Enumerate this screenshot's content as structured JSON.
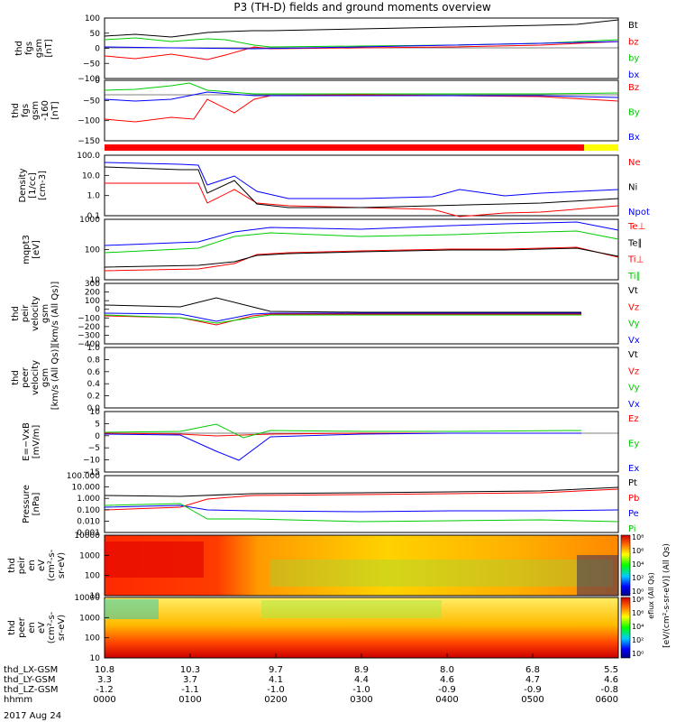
{
  "chart_data": {
    "type": "line",
    "title": "P3 (TH-D) fields and ground moments overview",
    "date_label": "2017 Aug 24",
    "x_axis": {
      "rows": [
        {
          "name": "thd_LX-GSM",
          "values": [
            "10.8",
            "10.3",
            "9.7",
            "8.9",
            "8.0",
            "6.8",
            "5.5"
          ]
        },
        {
          "name": "thd_LY-GSM",
          "values": [
            "3.3",
            "3.7",
            "4.1",
            "4.4",
            "4.6",
            "4.7",
            "4.6"
          ]
        },
        {
          "name": "thd_LZ-GSM",
          "values": [
            "-1.2",
            "-1.1",
            "-1.0",
            "-1.0",
            "-0.9",
            "-0.9",
            "-0.8"
          ]
        },
        {
          "name": "hhmm",
          "values": [
            "0000",
            "0100",
            "0200",
            "0300",
            "0400",
            "0500",
            "0600"
          ]
        }
      ]
    },
    "panels": [
      {
        "ylabel": [
          "thd",
          "fgs",
          "gsm",
          "[nT]"
        ],
        "ticks": [
          "100",
          "50",
          "0",
          "−50",
          "−100"
        ],
        "legend": [
          {
            "name": "Bt",
            "color": "#000000"
          },
          {
            "name": "bz",
            "color": "#ff0000"
          },
          {
            "name": "by",
            "color": "#00cc00"
          },
          {
            "name": "bx",
            "color": "#0000ff"
          }
        ]
      },
      {
        "ylabel": [
          "thd",
          "fgs",
          "gsm",
          "-160",
          "[nT]"
        ],
        "ticks": [
          "0",
          "−50",
          "−100",
          "−150"
        ],
        "legend": [
          {
            "name": "Bz",
            "color": "#ff0000"
          },
          {
            "name": "By",
            "color": "#00cc00"
          },
          {
            "name": "Bx",
            "color": "#0000ff"
          }
        ]
      },
      {
        "ylabel": [
          "Density",
          "[1/cc]",
          "[cm-3]"
        ],
        "ticks": [
          "100.0",
          "10.0",
          "1.0",
          "0.1"
        ],
        "legend": [
          {
            "name": "Ne",
            "color": "#ff0000"
          },
          {
            "name": "Ni",
            "color": "#000000"
          },
          {
            "name": "Npot",
            "color": "#0000ff"
          }
        ]
      },
      {
        "ylabel": [
          "mqpt3",
          "[eV]"
        ],
        "ticks": [
          "1000",
          "100",
          "10"
        ],
        "legend": [
          {
            "name": "Te⊥",
            "color": "#ff0000"
          },
          {
            "name": "Te∥",
            "color": "#000000"
          },
          {
            "name": "Ti⊥",
            "color": "#ff0000"
          },
          {
            "name": "Ti∥",
            "color": "#00cc00"
          }
        ]
      },
      {
        "ylabel": [
          "thd",
          "peir",
          "velocity",
          "gsm",
          "[km/s (All Qs)]"
        ],
        "ticks": [
          "300",
          "200",
          "100",
          "0",
          "−100",
          "−200",
          "−300",
          "−400"
        ],
        "legend": [
          {
            "name": "Vt",
            "color": "#000000"
          },
          {
            "name": "Vz",
            "color": "#ff0000"
          },
          {
            "name": "Vy",
            "color": "#00cc00"
          },
          {
            "name": "Vx",
            "color": "#0000ff"
          }
        ]
      },
      {
        "ylabel": [
          "thd",
          "peer",
          "velocity",
          "gsm",
          "[km/s (All Qs)]"
        ],
        "ticks": [
          "1.0",
          "0.8",
          "0.6",
          "0.4",
          "0.2",
          "0.0"
        ],
        "legend": [
          {
            "name": "Vt",
            "color": "#000000"
          },
          {
            "name": "Vz",
            "color": "#ff0000"
          },
          {
            "name": "Vy",
            "color": "#00cc00"
          },
          {
            "name": "Vx",
            "color": "#0000ff"
          }
        ]
      },
      {
        "ylabel": [
          "E=−VxB",
          "[mV/m]"
        ],
        "ticks": [
          "10",
          "5",
          "0",
          "−5",
          "−10",
          "−15"
        ],
        "legend": [
          {
            "name": "Ez",
            "color": "#ff0000"
          },
          {
            "name": "Ey",
            "color": "#00cc00"
          },
          {
            "name": "Ex",
            "color": "#0000ff"
          }
        ]
      },
      {
        "ylabel": [
          "Pressure",
          "[nPa]"
        ],
        "ticks": [
          "100.000",
          "10.000",
          "1.000",
          "0.100",
          "0.010",
          "0.001"
        ],
        "legend": [
          {
            "name": "Pt",
            "color": "#000000"
          },
          {
            "name": "Pb",
            "color": "#ff0000"
          },
          {
            "name": "Pe",
            "color": "#0000ff"
          },
          {
            "name": "Pi",
            "color": "#00cc00"
          }
        ]
      },
      {
        "ylabel": [
          "thd",
          "peir",
          "en",
          "eV",
          "(cm²-s-",
          "sr-eV)"
        ],
        "ticks": [
          "10000",
          "1000",
          "100",
          "10"
        ],
        "legend": []
      },
      {
        "ylabel": [
          "thd",
          "peer",
          "en",
          "eV",
          "(cm²-s-",
          "sr-eV)"
        ],
        "ticks": [
          "10000",
          "1000",
          "100",
          "10"
        ],
        "legend": []
      }
    ],
    "colorbar": {
      "label": "[eV/(cm²-s-sr-eV)] (All Qs)",
      "upper_ticks": [
        "10⁸",
        "10⁶",
        "10⁴",
        "10²",
        "10⁰"
      ],
      "lower_ticks": [
        "10⁸",
        "10⁶",
        "10⁴",
        "10²",
        "10⁰"
      ]
    },
    "side_label": "eflux (All Qs)"
  }
}
